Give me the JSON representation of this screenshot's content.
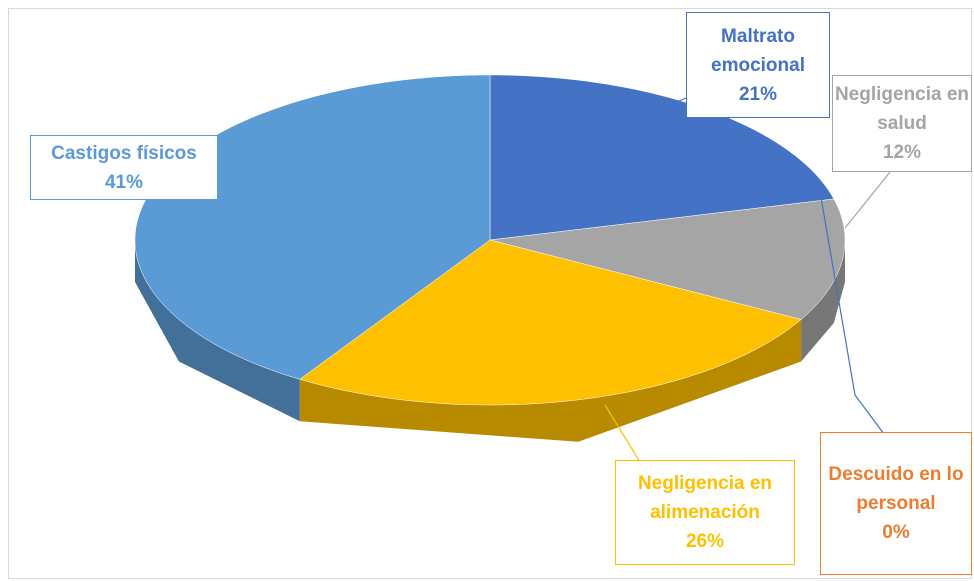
{
  "chart_data": {
    "type": "pie",
    "three_d": true,
    "categories": [
      "Maltrato emocional",
      "Negligencia en salud",
      "Descuido en lo personal",
      "Negligencia en alimenación",
      "Castigos físicos"
    ],
    "values": [
      21,
      12,
      0,
      26,
      41
    ],
    "value_labels": [
      "21%",
      "12%",
      "0%",
      "26%",
      "41%"
    ],
    "colors": [
      "#4472c4",
      "#a5a5a5",
      "#ed7d31",
      "#ffc000",
      "#5b9bd5"
    ]
  }
}
